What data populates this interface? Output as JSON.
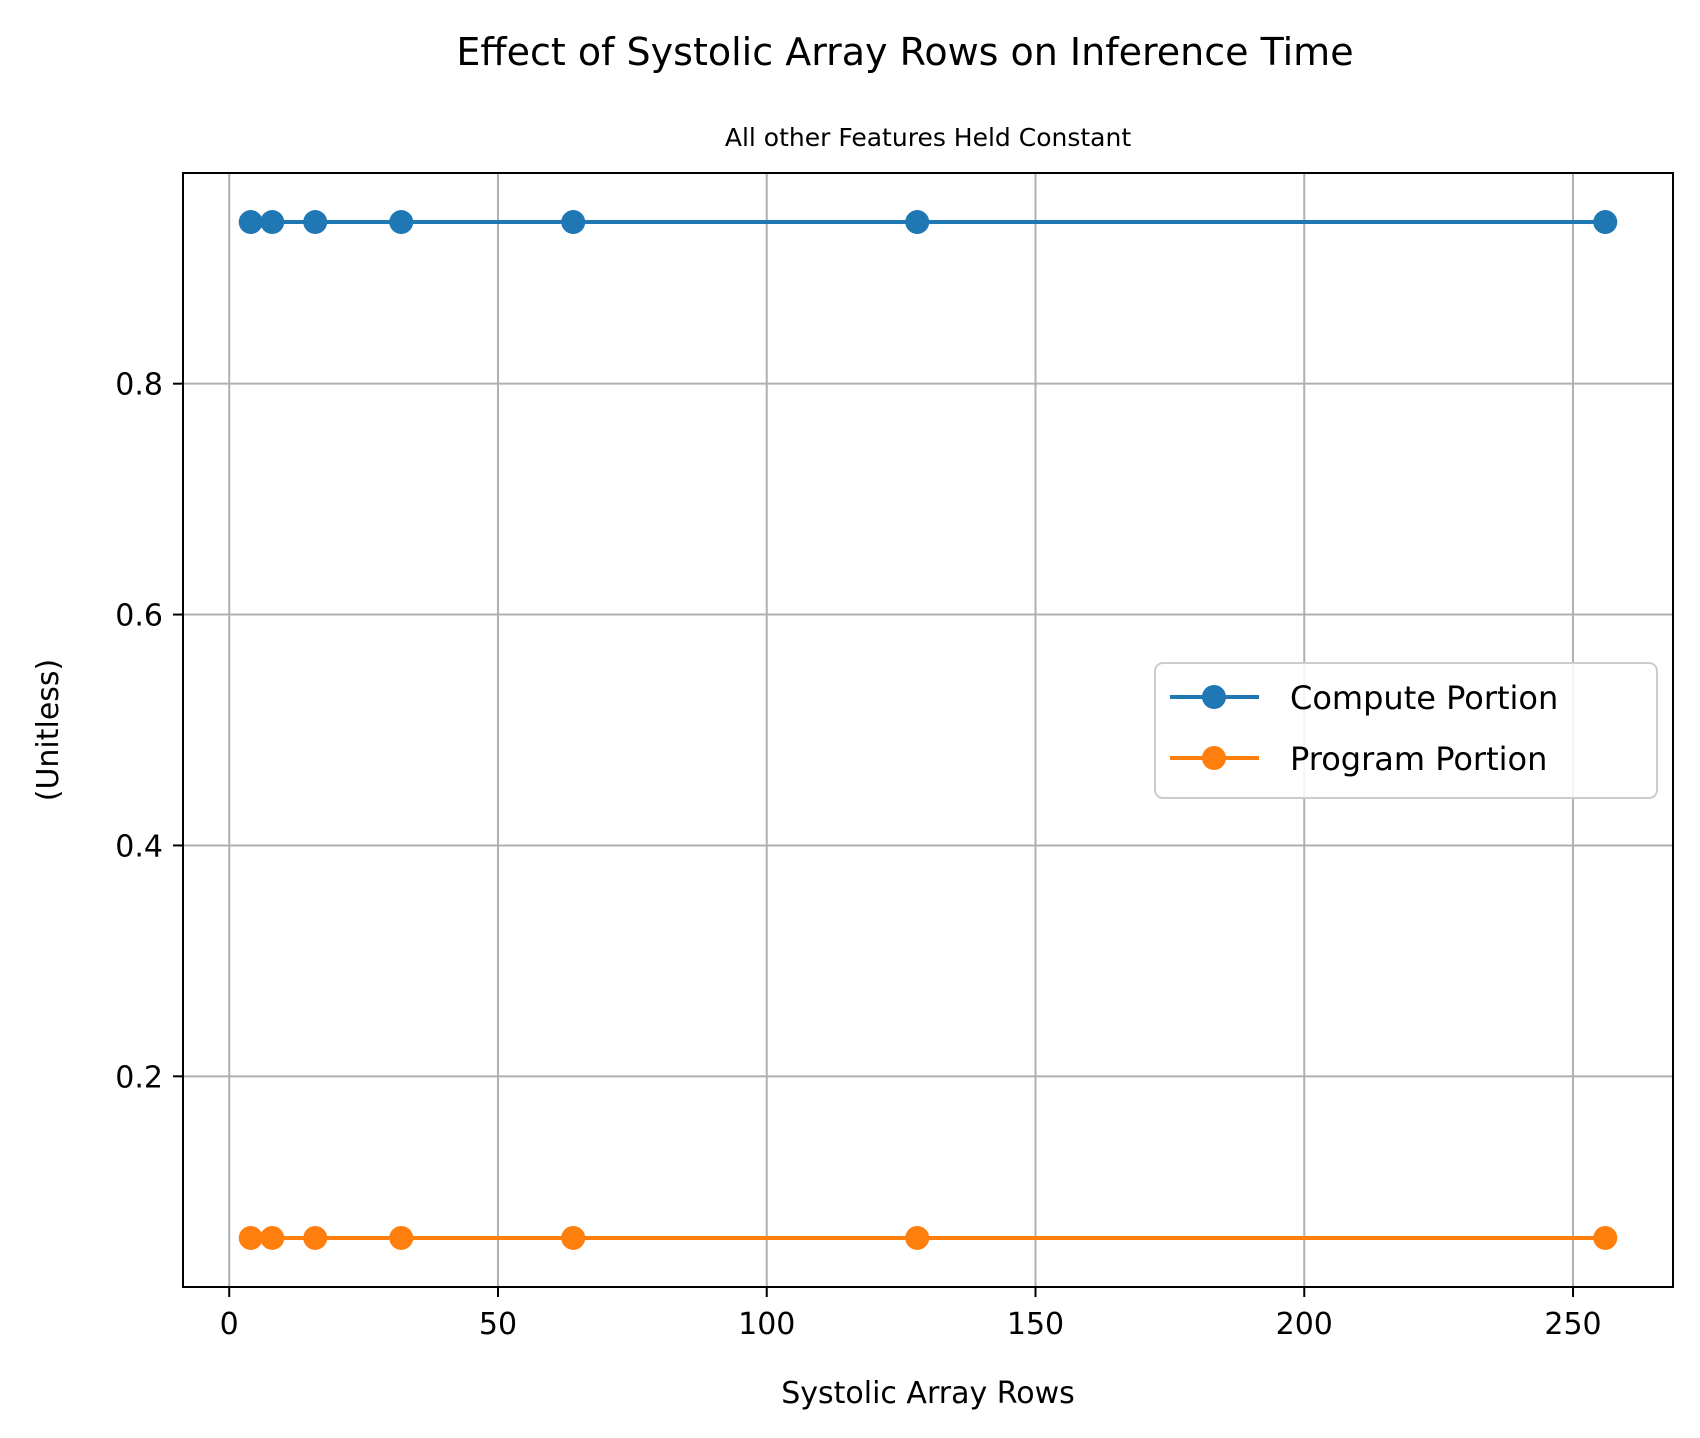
{
  "chart_data": {
    "type": "line",
    "title": "Effect of Systolic Array Rows on Inference Time",
    "subtitle": "All other Features Held Constant",
    "xlabel": "Systolic Array Rows",
    "ylabel": "(Unitless)",
    "xlim": [
      -8.6,
      268.6
    ],
    "ylim": [
      0.0175,
      0.9825
    ],
    "xticks": [
      0,
      50,
      100,
      150,
      200,
      250
    ],
    "xtick_labels": [
      "0",
      "50",
      "100",
      "150",
      "200",
      "250"
    ],
    "yticks": [
      0.2,
      0.4,
      0.6,
      0.8
    ],
    "ytick_labels": [
      "0.2",
      "0.4",
      "0.6",
      "0.8"
    ],
    "grid": true,
    "legend_position": "center-right",
    "x": [
      4,
      8,
      16,
      32,
      64,
      128,
      256
    ],
    "series": [
      {
        "name": "Compute Portion",
        "color": "#1f77b4",
        "marker": "circle",
        "values": [
          0.94,
          0.94,
          0.94,
          0.94,
          0.94,
          0.94,
          0.94
        ]
      },
      {
        "name": "Program Portion",
        "color": "#ff7f0e",
        "marker": "circle",
        "values": [
          0.06,
          0.06,
          0.06,
          0.06,
          0.06,
          0.06,
          0.06
        ]
      }
    ]
  }
}
